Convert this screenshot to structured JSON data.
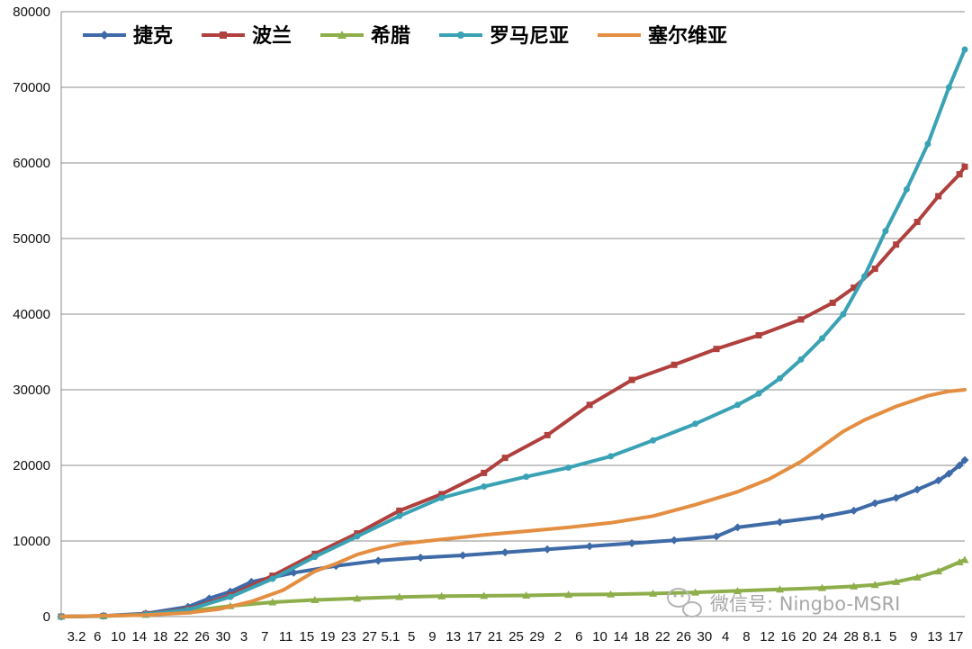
{
  "chart_data": {
    "type": "line",
    "title": "",
    "xlabel": "",
    "ylabel": "",
    "ylim": [
      0,
      80000
    ],
    "yticks": [
      0,
      10000,
      20000,
      30000,
      40000,
      50000,
      60000,
      70000,
      80000
    ],
    "grid": "horizontal",
    "legend_position": "top-left",
    "x_tick_labels": [
      "3.2",
      "6",
      "10",
      "14",
      "18",
      "22",
      "26",
      "30",
      "3",
      "7",
      "11",
      "15",
      "19",
      "23",
      "27",
      "5.1",
      "5",
      "9",
      "13",
      "17",
      "21",
      "25",
      "29",
      "2",
      "6",
      "10",
      "14",
      "18",
      "22",
      "26",
      "30",
      "4",
      "8",
      "12",
      "16",
      "20",
      "24",
      "28",
      "8.1",
      "5",
      "9",
      "13",
      "17"
    ],
    "x_index_range": [
      0,
      171
    ],
    "series": [
      {
        "name": "捷克",
        "color": "#3e6aa8",
        "marker": "diamond",
        "points": [
          [
            0,
            0
          ],
          [
            8,
            100
          ],
          [
            16,
            400
          ],
          [
            24,
            1300
          ],
          [
            28,
            2400
          ],
          [
            32,
            3300
          ],
          [
            36,
            4600
          ],
          [
            44,
            5800
          ],
          [
            52,
            6700
          ],
          [
            60,
            7400
          ],
          [
            68,
            7800
          ],
          [
            76,
            8100
          ],
          [
            84,
            8500
          ],
          [
            92,
            8900
          ],
          [
            100,
            9300
          ],
          [
            108,
            9700
          ],
          [
            116,
            10100
          ],
          [
            124,
            10600
          ],
          [
            128,
            11800
          ],
          [
            136,
            12500
          ],
          [
            144,
            13200
          ],
          [
            150,
            14000
          ],
          [
            154,
            15000
          ],
          [
            158,
            15700
          ],
          [
            162,
            16800
          ],
          [
            166,
            18000
          ],
          [
            168,
            18900
          ],
          [
            170,
            20000
          ],
          [
            171,
            20700
          ]
        ]
      },
      {
        "name": "波兰",
        "color": "#b0403e",
        "marker": "square",
        "points": [
          [
            0,
            0
          ],
          [
            8,
            80
          ],
          [
            16,
            350
          ],
          [
            24,
            1000
          ],
          [
            32,
            2800
          ],
          [
            40,
            5400
          ],
          [
            48,
            8300
          ],
          [
            56,
            11000
          ],
          [
            64,
            14000
          ],
          [
            72,
            16200
          ],
          [
            80,
            19000
          ],
          [
            84,
            21000
          ],
          [
            92,
            24000
          ],
          [
            100,
            28000
          ],
          [
            108,
            31300
          ],
          [
            116,
            33300
          ],
          [
            124,
            35400
          ],
          [
            132,
            37200
          ],
          [
            140,
            39300
          ],
          [
            146,
            41500
          ],
          [
            150,
            43500
          ],
          [
            154,
            46000
          ],
          [
            158,
            49200
          ],
          [
            162,
            52200
          ],
          [
            166,
            55600
          ],
          [
            170,
            58500
          ],
          [
            171,
            59500
          ]
        ]
      },
      {
        "name": "希腊",
        "color": "#8dae4a",
        "marker": "triangle",
        "points": [
          [
            0,
            0
          ],
          [
            8,
            60
          ],
          [
            16,
            250
          ],
          [
            24,
            700
          ],
          [
            32,
            1400
          ],
          [
            40,
            1900
          ],
          [
            48,
            2200
          ],
          [
            56,
            2400
          ],
          [
            64,
            2600
          ],
          [
            72,
            2700
          ],
          [
            80,
            2750
          ],
          [
            88,
            2800
          ],
          [
            96,
            2900
          ],
          [
            104,
            2950
          ],
          [
            112,
            3050
          ],
          [
            120,
            3200
          ],
          [
            128,
            3400
          ],
          [
            136,
            3600
          ],
          [
            144,
            3800
          ],
          [
            150,
            4000
          ],
          [
            154,
            4200
          ],
          [
            158,
            4600
          ],
          [
            162,
            5200
          ],
          [
            166,
            6000
          ],
          [
            170,
            7200
          ],
          [
            171,
            7500
          ]
        ]
      },
      {
        "name": "罗马尼亚",
        "color": "#3aa2b5",
        "marker": "circle",
        "points": [
          [
            0,
            0
          ],
          [
            8,
            70
          ],
          [
            16,
            300
          ],
          [
            24,
            900
          ],
          [
            32,
            2600
          ],
          [
            40,
            5000
          ],
          [
            48,
            7900
          ],
          [
            56,
            10600
          ],
          [
            64,
            13300
          ],
          [
            72,
            15700
          ],
          [
            80,
            17200
          ],
          [
            88,
            18500
          ],
          [
            96,
            19700
          ],
          [
            104,
            21200
          ],
          [
            112,
            23300
          ],
          [
            120,
            25500
          ],
          [
            128,
            28000
          ],
          [
            132,
            29500
          ],
          [
            136,
            31500
          ],
          [
            140,
            34000
          ],
          [
            144,
            36800
          ],
          [
            148,
            40000
          ],
          [
            152,
            45000
          ],
          [
            156,
            51000
          ],
          [
            160,
            56500
          ],
          [
            164,
            62500
          ],
          [
            168,
            70000
          ],
          [
            171,
            75000
          ]
        ]
      },
      {
        "name": "塞尔维亚",
        "color": "#e38e41",
        "marker": "none",
        "points": [
          [
            0,
            0
          ],
          [
            16,
            200
          ],
          [
            24,
            500
          ],
          [
            30,
            1000
          ],
          [
            36,
            2000
          ],
          [
            42,
            3500
          ],
          [
            48,
            6000
          ],
          [
            52,
            7000
          ],
          [
            56,
            8200
          ],
          [
            60,
            9000
          ],
          [
            64,
            9600
          ],
          [
            72,
            10200
          ],
          [
            80,
            10800
          ],
          [
            88,
            11300
          ],
          [
            96,
            11800
          ],
          [
            104,
            12400
          ],
          [
            112,
            13300
          ],
          [
            120,
            14800
          ],
          [
            128,
            16500
          ],
          [
            134,
            18200
          ],
          [
            140,
            20500
          ],
          [
            144,
            22500
          ],
          [
            148,
            24500
          ],
          [
            152,
            26000
          ],
          [
            158,
            27800
          ],
          [
            164,
            29200
          ],
          [
            168,
            29800
          ],
          [
            171,
            30000
          ]
        ]
      }
    ]
  },
  "watermark": {
    "icon": "wechat-icon",
    "text": "微信号: Ningbo-MSRI"
  }
}
